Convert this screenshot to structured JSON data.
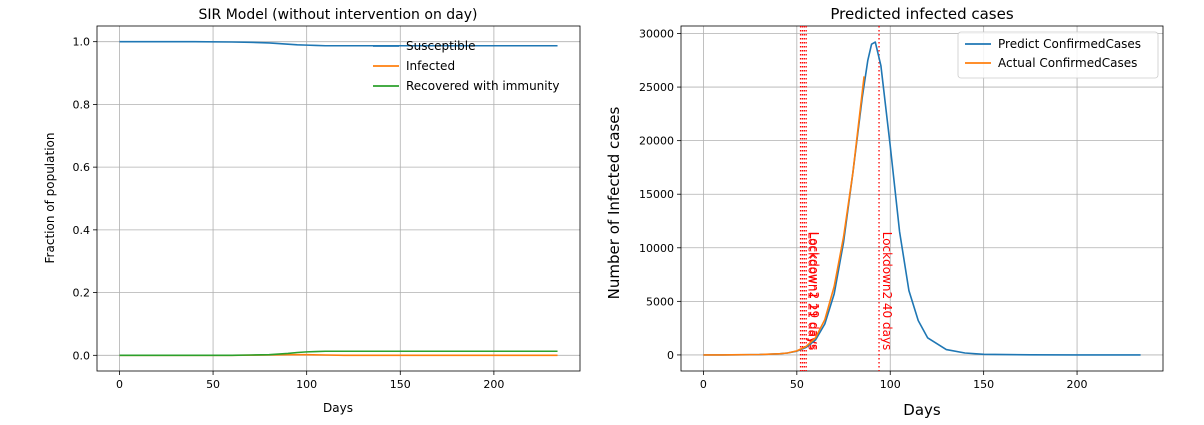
{
  "chart_data": [
    {
      "type": "line",
      "title": "SIR Model (without intervention on day)",
      "xlabel": "Days",
      "ylabel": "Fraction of population",
      "xlim": [
        -12,
        246
      ],
      "ylim": [
        -0.05,
        1.05
      ],
      "xticks": [
        0,
        50,
        100,
        150,
        200
      ],
      "yticks": [
        0.0,
        0.2,
        0.4,
        0.6,
        0.8,
        1.0
      ],
      "ytick_labels": [
        "0.0",
        "0.2",
        "0.4",
        "0.6",
        "0.8",
        "1.0"
      ],
      "grid": true,
      "legend": "upper right",
      "series": [
        {
          "name": "Susceptible",
          "color": "#1f77b4",
          "x": [
            0,
            20,
            40,
            60,
            70,
            80,
            85,
            90,
            95,
            100,
            105,
            110,
            120,
            140,
            160,
            200,
            234
          ],
          "y": [
            1.0,
            1.0,
            1.0,
            0.999,
            0.998,
            0.996,
            0.994,
            0.992,
            0.99,
            0.989,
            0.988,
            0.987,
            0.987,
            0.987,
            0.987,
            0.987,
            0.987
          ]
        },
        {
          "name": "Infected",
          "color": "#ff7f0e",
          "x": [
            0,
            60,
            80,
            90,
            95,
            100,
            110,
            120,
            234
          ],
          "y": [
            0.0,
            0.0,
            0.001,
            0.002,
            0.002,
            0.002,
            0.001,
            0.0,
            0.0
          ]
        },
        {
          "name": "Recovered with immunity",
          "color": "#2ca02c",
          "x": [
            0,
            60,
            70,
            80,
            85,
            90,
            95,
            100,
            105,
            110,
            120,
            140,
            160,
            200,
            234
          ],
          "y": [
            0.0,
            0.0,
            0.001,
            0.002,
            0.004,
            0.006,
            0.009,
            0.011,
            0.012,
            0.013,
            0.013,
            0.013,
            0.013,
            0.013,
            0.013
          ]
        }
      ]
    },
    {
      "type": "line",
      "title": "Predicted infected cases",
      "xlabel": "Days",
      "ylabel": "Number of Infected cases",
      "xlim": [
        -12,
        246
      ],
      "ylim": [
        -1500,
        30700
      ],
      "xticks": [
        0,
        50,
        100,
        150,
        200
      ],
      "yticks": [
        0,
        5000,
        10000,
        15000,
        20000,
        25000,
        30000
      ],
      "grid": true,
      "legend": "upper right",
      "series": [
        {
          "name": "Predict ConfirmedCases",
          "color": "#1f77b4",
          "x": [
            0,
            10,
            20,
            30,
            40,
            45,
            50,
            55,
            60,
            65,
            70,
            75,
            80,
            85,
            88,
            90,
            92,
            95,
            100,
            105,
            110,
            115,
            120,
            130,
            140,
            150,
            175,
            200,
            234
          ],
          "y": [
            0,
            0,
            10,
            30,
            100,
            180,
            350,
            700,
            1400,
            2900,
            5700,
            10500,
            17000,
            24000,
            27500,
            29000,
            29200,
            27000,
            19500,
            11500,
            6000,
            3200,
            1600,
            500,
            180,
            60,
            10,
            0,
            0
          ]
        },
        {
          "name": "Actual ConfirmedCases",
          "color": "#ff7f0e",
          "x": [
            0,
            10,
            20,
            30,
            40,
            45,
            50,
            55,
            60,
            65,
            70,
            75,
            80,
            85,
            86
          ],
          "y": [
            0,
            0,
            20,
            40,
            100,
            180,
            380,
            800,
            1600,
            3300,
            6400,
            11000,
            17000,
            24500,
            26000
          ]
        }
      ],
      "vlines": [
        {
          "x": 52,
          "label": ""
        },
        {
          "x": 53,
          "label": ""
        },
        {
          "x": 54,
          "label": "Lockdown1 21 days"
        },
        {
          "x": 55,
          "label": "Lockdown2 19 days"
        },
        {
          "x": 94,
          "label": "Lockdown2 40 days"
        }
      ],
      "vline_color": "#ff0000"
    }
  ]
}
